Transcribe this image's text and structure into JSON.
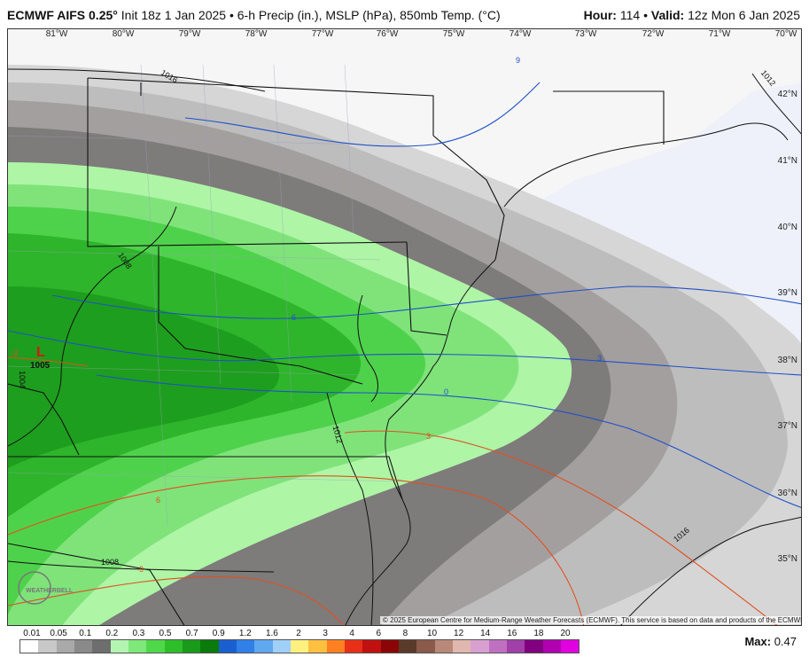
{
  "header": {
    "model": "ECMWF AIFS 0.25°",
    "init": "Init 18z 1 Jan 2025",
    "fields": "6-h Precip (in.), MSLP (hPa), 850mb Temp. (°C)",
    "hour_label": "Hour:",
    "hour": "114",
    "valid_label": "Valid:",
    "valid": "12z Mon 6 Jan 2025"
  },
  "longitude_labels": [
    "81°W",
    "80°W",
    "79°W",
    "78°W",
    "77°W",
    "76°W",
    "75°W",
    "74°W",
    "73°W",
    "72°W",
    "71°W",
    "70°W"
  ],
  "latitude_labels": [
    "42°N",
    "41°N",
    "40°N",
    "39°N",
    "38°N",
    "37°N",
    "36°N",
    "35°N"
  ],
  "isobar_labels": [
    "1016",
    "1008",
    "1004",
    "1012",
    "1012",
    "1016",
    "1008"
  ],
  "isotherm_labels": [
    "9",
    "6",
    "3",
    "0",
    "-3",
    "3",
    "6",
    "9"
  ],
  "low_center": {
    "symbol": "L",
    "pressure": "1005"
  },
  "colorbar": {
    "labels": [
      "0.01",
      "0.05",
      "0.1",
      "0.2",
      "0.3",
      "0.5",
      "0.7",
      "0.9",
      "1.2",
      "1.6",
      "2",
      "3",
      "4",
      "6",
      "8",
      "10",
      "12",
      "14",
      "16",
      "18",
      "20"
    ],
    "colors": [
      "#ffffff",
      "#c8c8c8",
      "#a9a9a9",
      "#8a8a8a",
      "#6e6e6e",
      "#b3f5b0",
      "#7ee87a",
      "#4fd84a",
      "#2dbe2a",
      "#1a9a1a",
      "#0a7a0a",
      "#1a5fd0",
      "#3080e8",
      "#60a8f0",
      "#a0d0f8",
      "#fff080",
      "#ffc040",
      "#ff8020",
      "#e83018",
      "#c01010",
      "#8a0606",
      "#5a3a2a",
      "#8a5a4a",
      "#b88878",
      "#e0b8b0",
      "#d8a0d0",
      "#c070c0",
      "#a040a8",
      "#800080",
      "#b000b0",
      "#e000e0"
    ]
  },
  "max": {
    "label": "Max:",
    "value": "0.47"
  },
  "copyright": "© 2025 European Centre for Medium-Range Weather Forecasts (ECMWF). This service is based on data and products of the ECMWF.",
  "logo": "WEATHERBELL"
}
